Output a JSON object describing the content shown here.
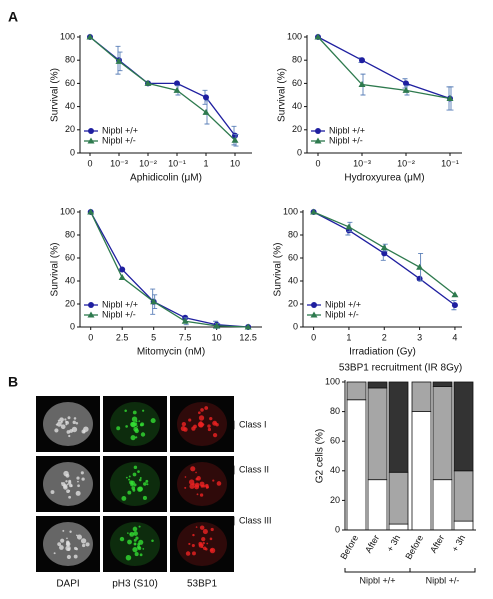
{
  "panel_labels": [
    "A",
    "B"
  ],
  "image_columns": [
    "DAPI",
    "pH3 (S10)",
    "53BP1"
  ],
  "chart_data": [
    {
      "type": "line",
      "ylabel": "Survival (%)",
      "xlabel": "Aphidicolin (μM)",
      "categories": [
        "0",
        "10⁻³",
        "10⁻²",
        "10⁻¹",
        "1",
        "10"
      ],
      "ylim": [
        0,
        100
      ],
      "yticks": [
        0,
        20,
        40,
        60,
        80,
        100
      ],
      "legend": "lower-left",
      "series": [
        {
          "name": "Nipbl +/+",
          "color": "#1f1fa0",
          "marker": "circle",
          "values": [
            100,
            80,
            60,
            60,
            48,
            15
          ],
          "errors": [
            null,
            12,
            null,
            null,
            6,
            8
          ]
        },
        {
          "name": "Nipbl +/-",
          "color": "#2e7a4e",
          "marker": "triangle",
          "values": [
            100,
            79,
            60,
            54,
            35,
            11
          ],
          "errors": [
            null,
            8,
            null,
            4,
            10,
            5
          ]
        }
      ]
    },
    {
      "type": "line",
      "ylabel": "Survival (%)",
      "xlabel": "Hydroxyurea (μM)",
      "categories": [
        "0",
        "10⁻³",
        "10⁻²",
        "10⁻¹"
      ],
      "ylim": [
        0,
        100
      ],
      "yticks": [
        0,
        20,
        40,
        60,
        80,
        100
      ],
      "legend": "lower-left",
      "series": [
        {
          "name": "Nipbl +/+",
          "color": "#1f1fa0",
          "marker": "circle",
          "values": [
            100,
            80,
            60,
            47
          ],
          "errors": [
            null,
            2,
            4,
            10
          ]
        },
        {
          "name": "Nipbl +/-",
          "color": "#2e7a4e",
          "marker": "triangle",
          "values": [
            100,
            59,
            54,
            47
          ],
          "errors": [
            null,
            9,
            4,
            10
          ]
        }
      ]
    },
    {
      "type": "line",
      "ylabel": "Survival (%)",
      "xlabel": "Mitomycin (nM)",
      "x": [
        0,
        2.5,
        5,
        7.5,
        10,
        12.5
      ],
      "xlim": [
        -0.85,
        13.6
      ],
      "xticks": [
        0,
        2.5,
        5,
        7.5,
        10,
        12.5
      ],
      "ylim": [
        0,
        100
      ],
      "yticks": [
        0,
        20,
        40,
        60,
        80,
        100
      ],
      "legend": "lower-left",
      "series": [
        {
          "name": "Nipbl +/+",
          "color": "#1f1fa0",
          "marker": "circle",
          "values": [
            100,
            50,
            22,
            8,
            2,
            0
          ],
          "errors": [
            null,
            null,
            11,
            null,
            3,
            null
          ]
        },
        {
          "name": "Nipbl +/-",
          "color": "#2e7a4e",
          "marker": "triangle",
          "values": [
            100,
            43,
            22,
            5,
            1,
            0
          ],
          "errors": [
            null,
            null,
            6,
            3,
            2,
            null
          ]
        }
      ]
    },
    {
      "type": "line",
      "ylabel": "Survival (%)",
      "xlabel": "Irradiation (Gy)",
      "x": [
        0,
        1,
        2,
        3,
        4
      ],
      "xlim": [
        -0.3,
        4.2
      ],
      "xticks": [
        0,
        1,
        2,
        3,
        4
      ],
      "ylim": [
        0,
        100
      ],
      "yticks": [
        0,
        20,
        40,
        60,
        80,
        100
      ],
      "legend": "lower-left",
      "series": [
        {
          "name": "Nipbl +/+",
          "color": "#1f1fa0",
          "marker": "circle",
          "values": [
            100,
            84,
            64,
            42,
            19
          ],
          "errors": [
            null,
            4,
            6,
            null,
            4
          ]
        },
        {
          "name": "Nipbl +/-",
          "color": "#2e7a4e",
          "marker": "triangle",
          "values": [
            100,
            87,
            69,
            52,
            28
          ],
          "errors": [
            null,
            4,
            3,
            12,
            null
          ]
        }
      ]
    },
    {
      "type": "stacked-bar",
      "title": "53BP1 recruitment (IR 8Gy)",
      "ylabel": "G2 cells (%)",
      "categories": [
        "Before",
        "After",
        "+ 3h",
        "Before",
        "After",
        "+ 3h"
      ],
      "groups": [
        "Nipbl +/+",
        "Nipbl +/-"
      ],
      "ylim": [
        0,
        100
      ],
      "yticks": [
        0,
        20,
        40,
        60,
        80,
        100
      ],
      "series": [
        {
          "name": "Class I",
          "color": "#ffffff",
          "values": [
            88,
            34,
            4,
            80,
            34,
            6
          ]
        },
        {
          "name": "Class II",
          "color": "#a6a6a6",
          "values": [
            12,
            62,
            35,
            20,
            63,
            34
          ]
        },
        {
          "name": "Class III",
          "color": "#333333",
          "values": [
            0,
            4,
            61,
            0,
            3,
            60
          ]
        }
      ]
    }
  ]
}
